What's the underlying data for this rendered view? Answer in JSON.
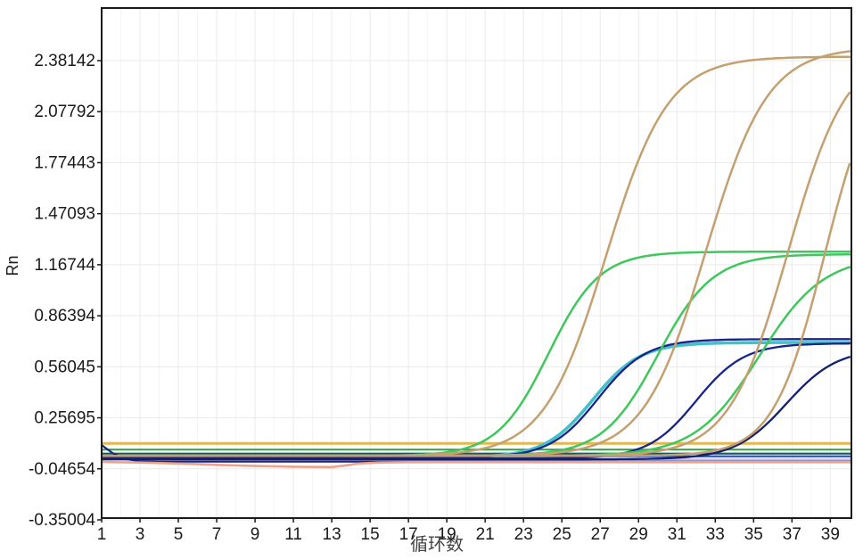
{
  "chart_data": {
    "type": "line",
    "title": "",
    "xlabel": "循环数",
    "ylabel": "Rn",
    "x_range": [
      1,
      40
    ],
    "x_ticks": [
      1,
      3,
      5,
      7,
      9,
      11,
      13,
      15,
      17,
      19,
      21,
      23,
      25,
      27,
      29,
      31,
      33,
      35,
      37,
      39
    ],
    "y_ticks": [
      {
        "label": "2.38142",
        "value": 2.38142
      },
      {
        "label": "2.07792",
        "value": 2.07792
      },
      {
        "label": "1.77443",
        "value": 1.77443
      },
      {
        "label": "1.47093",
        "value": 1.47093
      },
      {
        "label": "1.16744",
        "value": 1.16744
      },
      {
        "label": "0.86394",
        "value": 0.86394
      },
      {
        "label": "0.56045",
        "value": 0.56045
      },
      {
        "label": "0.25695",
        "value": 0.25695
      },
      {
        "label": "-0.04654",
        "value": -0.04654
      },
      {
        "label": "-0.35004",
        "value": -0.35004
      }
    ],
    "grid": true,
    "legend": "none",
    "threshold_line": {
      "name": "threshold-line",
      "value": 0.105,
      "color": "#E3B84E",
      "width": 3
    },
    "flat_lines": [
      {
        "name": "flat-green-trace",
        "value": 0.068,
        "color": "#3EA34F",
        "width": 2.2
      },
      {
        "name": "flat-teal-trace",
        "value": 0.044,
        "color": "#17595C",
        "width": 2.2
      },
      {
        "name": "flat-blue-trace",
        "value": 0.028,
        "color": "#2C55C5",
        "width": 2.2
      },
      {
        "name": "flat-lavender-trace",
        "value": 0.009,
        "color": "#C9B9E2",
        "width": 2.2
      }
    ],
    "baseline_traces": [
      {
        "name": "navy-baseline-trace",
        "color": "#1B2380",
        "width": 2.2,
        "points": [
          [
            1,
            0.095
          ],
          [
            1.6,
            0.045
          ],
          [
            2.2,
            0.012
          ],
          [
            3,
            -0.001
          ],
          [
            4,
            -0.004
          ],
          [
            40.2,
            -0.004
          ]
        ]
      },
      {
        "name": "salmon-dip-trace",
        "color": "#EBA38A",
        "width": 2.6,
        "points": [
          [
            1,
            -0.006
          ],
          [
            3,
            -0.009
          ],
          [
            5,
            -0.015
          ],
          [
            7,
            -0.023
          ],
          [
            9,
            -0.03
          ],
          [
            11,
            -0.034
          ],
          [
            13,
            -0.036
          ],
          [
            13.6,
            -0.028
          ],
          [
            14.4,
            -0.015
          ],
          [
            15.5,
            -0.009
          ],
          [
            17,
            -0.007
          ],
          [
            40.2,
            -0.007
          ]
        ]
      }
    ],
    "amplification_curves": [
      {
        "name": "teal-halo-curve",
        "color": "#45C0CB",
        "width": 3.6,
        "baseline": 0.02,
        "plateau": 0.705,
        "midpoint": 26.6,
        "slope": 0.8,
        "ct": 24.5
      },
      {
        "name": "navy-curve-1",
        "color": "#18248A",
        "width": 2.3,
        "baseline": 0.02,
        "plateau": 0.725,
        "midpoint": 26.9,
        "slope": 0.8,
        "ct": 24.7
      },
      {
        "name": "navy-curve-2",
        "color": "#18248A",
        "width": 2.3,
        "baseline": 0.015,
        "plateau": 0.7,
        "midpoint": 32.0,
        "slope": 0.8,
        "ct": 29.8
      },
      {
        "name": "navy-curve-3",
        "color": "#141F6E",
        "width": 2.3,
        "baseline": 0.01,
        "plateau": 0.67,
        "midpoint": 36.7,
        "slope": 0.75,
        "ct": 34.6
      },
      {
        "name": "green-curve-1",
        "color": "#3FC75D",
        "width": 2.5,
        "baseline": 0.03,
        "plateau": 1.245,
        "midpoint": 24.3,
        "slope": 0.75,
        "ct": 21.4
      },
      {
        "name": "green-curve-2",
        "color": "#3FC75D",
        "width": 2.5,
        "baseline": 0.03,
        "plateau": 1.23,
        "midpoint": 30.0,
        "slope": 0.7,
        "ct": 26.8
      },
      {
        "name": "green-curve-3",
        "color": "#3FC75D",
        "width": 2.5,
        "baseline": 0.03,
        "plateau": 1.22,
        "midpoint": 35.3,
        "slope": 0.6,
        "ct": 31.3
      },
      {
        "name": "tan-curve-1",
        "color": "#C4A070",
        "width": 2.5,
        "baseline": 0.03,
        "plateau": 2.405,
        "midpoint": 27.3,
        "slope": 0.62,
        "ct": 23.1
      },
      {
        "name": "tan-curve-2",
        "color": "#C4A070",
        "width": 2.5,
        "baseline": 0.03,
        "plateau": 2.46,
        "midpoint": 32.5,
        "slope": 0.62,
        "ct": 28.2
      },
      {
        "name": "tan-curve-3",
        "color": "#C4A070",
        "width": 2.5,
        "baseline": 0.03,
        "plateau": 2.46,
        "midpoint": 36.8,
        "slope": 0.65,
        "ct": 32.6
      },
      {
        "name": "tan-curve-4",
        "color": "#C4A070",
        "width": 2.5,
        "baseline": 0.03,
        "plateau": 2.42,
        "midpoint": 38.7,
        "slope": 0.75,
        "ct": 35.0
      }
    ],
    "colors": {
      "plot_border": "#1a1a1a",
      "grid_major": "#eaeaea",
      "grid_minor": "#f5f5f5",
      "tick_text": "#1a1a1a",
      "background": "#ffffff"
    }
  }
}
